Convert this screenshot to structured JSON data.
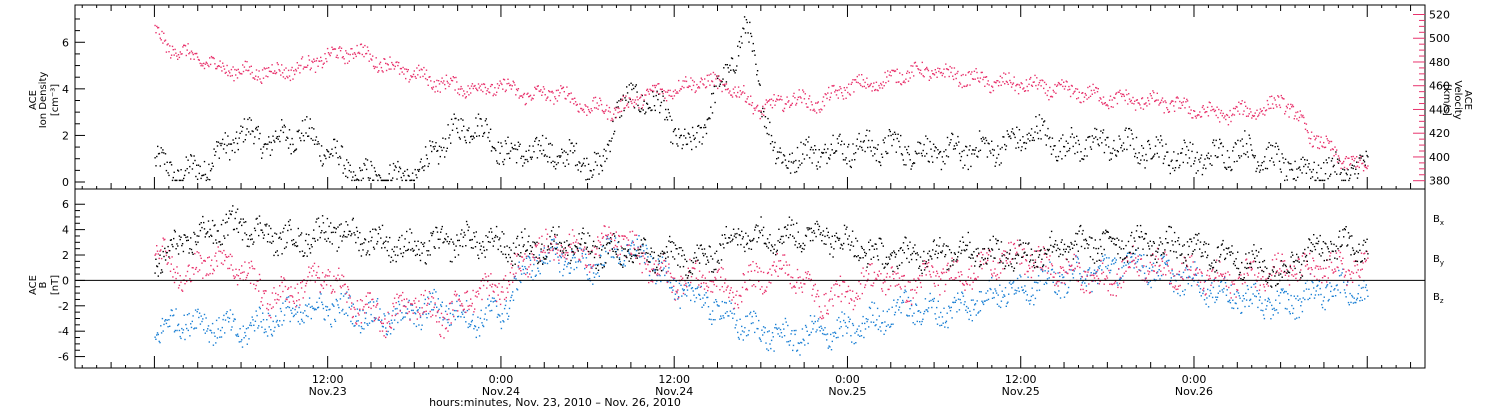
{
  "chart_data": [
    {
      "type": "scatter",
      "panel": "top",
      "left_axis": {
        "label_lines": [
          "ACE",
          "Ion Density"
        ],
        "unit": "[cm⁻³]",
        "ylim": [
          -0.3,
          7.6
        ],
        "ticks": [
          "0",
          "2",
          "4",
          "6"
        ],
        "color": "#000000"
      },
      "right_axis": {
        "label_lines": [
          "ACE",
          "Velocity"
        ],
        "unit": "[km/s]",
        "ylim": [
          373,
          528
        ],
        "ticks": [
          "380",
          "400",
          "420",
          "440",
          "460",
          "480",
          "500",
          "520"
        ],
        "color": "#e8336d"
      },
      "series": [
        {
          "axis": "left",
          "color": "#000000",
          "x": [
            0,
            1.5,
            3,
            4.5,
            5,
            6,
            8,
            10,
            12,
            14,
            16,
            18,
            20,
            22,
            24,
            25,
            26,
            28,
            29,
            30,
            31,
            32,
            33,
            34,
            35,
            37,
            39,
            41,
            43,
            45,
            47,
            49,
            51,
            53,
            55,
            57,
            59,
            61,
            63,
            65,
            67,
            69,
            71,
            73,
            75,
            77,
            79,
            80,
            81,
            82,
            83,
            84
          ],
          "y": [
            0.9,
            0.4,
            0.5,
            1.3,
            1.5,
            2.2,
            1.7,
            2.2,
            1.4,
            0.2,
            0.25,
            0.25,
            1.8,
            2.6,
            1.5,
            1.1,
            1.4,
            1.2,
            1.0,
            1.0,
            0.4,
            3.4,
            3.5,
            3.6,
            3.2,
            1.3,
            3.9,
            6.6,
            1.0,
            1.2,
            1.5,
            1.5,
            1.6,
            1.3,
            1.3,
            1.4,
            1.6,
            2.2,
            1.5,
            1.7,
            1.6,
            1.4,
            1.1,
            1.0,
            1.5,
            1.1,
            0.5,
            0.6,
            0.5,
            0.5,
            0.5,
            0.7
          ]
        },
        {
          "axis": "right",
          "color": "#e8336d",
          "x": [
            0,
            1,
            2,
            4,
            6,
            8,
            10,
            12,
            14,
            16,
            18,
            20,
            22,
            24,
            26,
            28,
            29,
            30,
            32,
            34,
            36,
            38,
            40,
            42,
            44,
            46,
            48,
            50,
            52,
            54,
            56,
            58,
            60,
            62,
            64,
            66,
            68,
            70,
            72,
            74,
            75,
            76,
            77,
            78,
            80,
            82,
            84
          ],
          "y": [
            505,
            493,
            488,
            478,
            472,
            472,
            475,
            485,
            490,
            478,
            470,
            462,
            458,
            460,
            452,
            455,
            448,
            442,
            440,
            453,
            458,
            465,
            458,
            440,
            450,
            445,
            460,
            462,
            472,
            472,
            468,
            463,
            462,
            458,
            455,
            450,
            448,
            446,
            440,
            436,
            438,
            440,
            440,
            450,
            420,
            400,
            390
          ]
        }
      ]
    },
    {
      "type": "scatter",
      "panel": "bottom",
      "left_axis": {
        "label_lines": [
          "ACE",
          "B"
        ],
        "unit": "[nT]",
        "ylim": [
          -6.9,
          7.2
        ],
        "ticks": [
          "-6",
          "-4",
          "-2",
          "0",
          "2",
          "4",
          "6"
        ],
        "color": "#000000"
      },
      "legend": [
        {
          "name": "B",
          "sub": "x",
          "color": "#000000"
        },
        {
          "name": "B",
          "sub": "y",
          "color": "#1a7fd4"
        },
        {
          "name": "B",
          "sub": "z",
          "color": "#e8336d"
        }
      ],
      "series": [
        {
          "name": "Bx",
          "color": "#000000",
          "x": [
            0,
            2,
            4,
            6,
            8,
            10,
            12,
            14,
            16,
            18,
            20,
            22,
            24,
            26,
            28,
            30,
            32,
            34,
            36,
            38,
            40,
            42,
            44,
            46,
            48,
            50,
            52,
            54,
            56,
            58,
            60,
            62,
            64,
            66,
            68,
            70,
            72,
            74,
            76,
            78,
            80,
            82,
            84
          ],
          "y": [
            1.5,
            3.0,
            4.0,
            4.5,
            3.5,
            3.2,
            4.0,
            3.5,
            3.0,
            2.5,
            3.0,
            3.2,
            2.8,
            2.5,
            3.0,
            2.5,
            2.2,
            2.0,
            2.0,
            1.5,
            3.5,
            3.6,
            3.6,
            3.8,
            3.0,
            2.0,
            2.0,
            2.2,
            2.5,
            2.2,
            2.0,
            2.5,
            2.8,
            3.0,
            3.0,
            2.8,
            2.5,
            2.0,
            1.5,
            0.5,
            2.5,
            2.8,
            2.6
          ]
        },
        {
          "name": "By",
          "color": "#1a7fd4",
          "x": [
            0,
            2,
            4,
            6,
            8,
            10,
            12,
            14,
            16,
            18,
            20,
            22,
            24,
            26,
            28,
            30,
            32,
            34,
            36,
            38,
            40,
            42,
            44,
            46,
            48,
            50,
            52,
            54,
            56,
            58,
            60,
            62,
            64,
            66,
            68,
            70,
            72,
            74,
            76,
            78,
            80,
            82,
            84
          ],
          "y": [
            -4.0,
            -3.0,
            -3.5,
            -4.0,
            -3.0,
            -2.5,
            -2.0,
            -2.5,
            -3.0,
            -2.5,
            -2.0,
            -3.0,
            -2.5,
            1.5,
            2.0,
            1.0,
            2.5,
            2.0,
            -0.5,
            -1.5,
            -3.0,
            -4.0,
            -4.5,
            -4.0,
            -4.0,
            -3.0,
            -2.0,
            -2.5,
            -2.0,
            -1.0,
            -0.5,
            0.0,
            0.5,
            1.0,
            1.5,
            0.5,
            0.0,
            -1.0,
            -1.5,
            -2.0,
            -1.0,
            -0.5,
            -1.0
          ]
        },
        {
          "name": "Bz",
          "color": "#e8336d",
          "x": [
            0,
            2,
            4,
            6,
            8,
            10,
            12,
            14,
            16,
            18,
            20,
            22,
            24,
            26,
            28,
            30,
            32,
            34,
            36,
            38,
            40,
            42,
            44,
            46,
            48,
            50,
            52,
            54,
            56,
            58,
            60,
            62,
            64,
            66,
            68,
            70,
            72,
            74,
            76,
            78,
            80,
            82,
            84
          ],
          "y": [
            3.0,
            0.0,
            2.0,
            1.0,
            -1.5,
            -0.5,
            0.5,
            -2.0,
            -3.0,
            -1.5,
            -3.0,
            -1.0,
            -0.5,
            2.0,
            3.0,
            2.0,
            3.5,
            1.5,
            0.0,
            0.5,
            -1.0,
            0.5,
            1.0,
            -1.5,
            -1.0,
            0.5,
            -0.5,
            0.5,
            0.5,
            1.5,
            2.0,
            1.0,
            0.5,
            0.0,
            1.5,
            1.0,
            0.5,
            0.0,
            0.5,
            1.0,
            0.8,
            1.0,
            1.0
          ]
        }
      ]
    }
  ],
  "x_axis": {
    "range_hours": [
      -5.5,
      88
    ],
    "ticks": [
      {
        "hours": 12,
        "line1": "12:00",
        "line2": "Nov.23"
      },
      {
        "hours": 24,
        "line1": "0:00",
        "line2": "Nov.24"
      },
      {
        "hours": 36,
        "line1": "12:00",
        "line2": "Nov.24"
      },
      {
        "hours": 48,
        "line1": "0:00",
        "line2": "Nov.25"
      },
      {
        "hours": 60,
        "line1": "12:00",
        "line2": "Nov.25"
      },
      {
        "hours": 72,
        "line1": "0:00",
        "line2": "Nov.26"
      }
    ],
    "title": "hours:minutes, Nov. 23, 2010 – Nov. 26, 2010"
  }
}
